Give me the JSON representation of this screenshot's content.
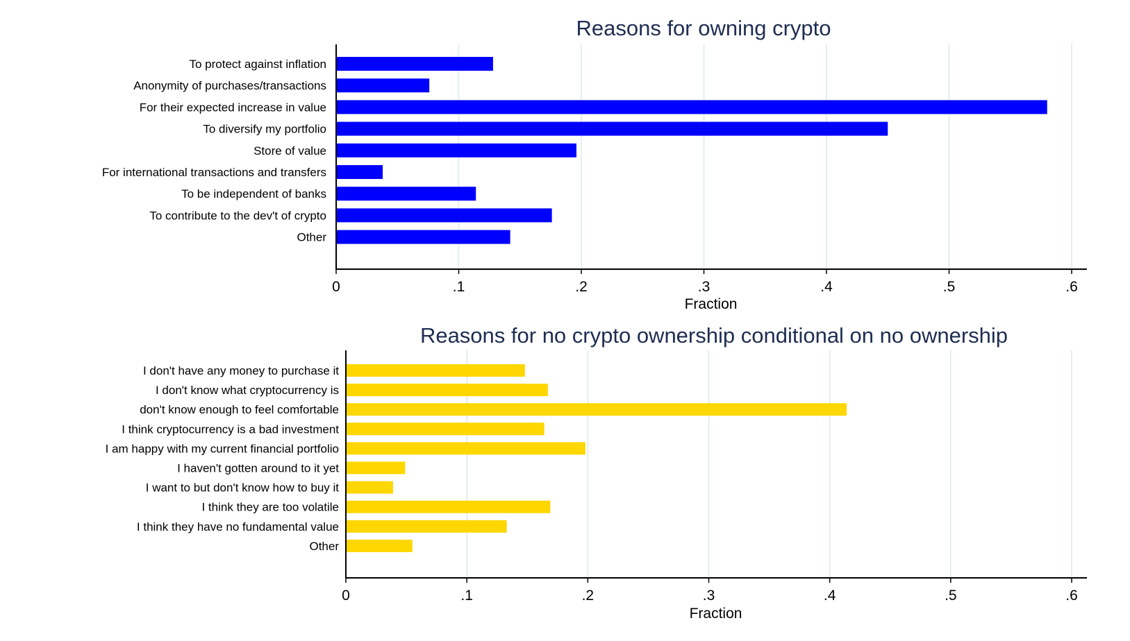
{
  "chart_data": [
    {
      "type": "bar",
      "orientation": "horizontal",
      "title": "Reasons for owning crypto",
      "xlabel": "Fraction",
      "ylabel": "",
      "xlim": [
        0,
        0.6
      ],
      "xticks": [
        0,
        0.1,
        0.2,
        0.3,
        0.4,
        0.5,
        0.6
      ],
      "xtick_labels": [
        "0",
        ".1",
        ".2",
        ".3",
        ".4",
        ".5",
        ".6"
      ],
      "grid": "vertical",
      "color": "#0000ff",
      "categories": [
        "To protect against inflation",
        "Anonymity of purchases/transactions",
        "For their expected increase in value",
        "To diversify my portfolio",
        "Store of value",
        "For international transactions and transfers",
        "To be independent of banks",
        "To contribute to the dev't of crypto",
        "Other"
      ],
      "values": [
        0.128,
        0.076,
        0.58,
        0.45,
        0.196,
        0.038,
        0.114,
        0.176,
        0.142
      ]
    },
    {
      "type": "bar",
      "orientation": "horizontal",
      "title": "Reasons for no crypto ownership conditional on no ownership",
      "xlabel": "Fraction",
      "ylabel": "",
      "xlim": [
        0,
        0.6
      ],
      "xticks": [
        0,
        0.1,
        0.2,
        0.3,
        0.4,
        0.5,
        0.6
      ],
      "xtick_labels": [
        "0",
        ".1",
        ".2",
        ".3",
        ".4",
        ".5",
        ".6"
      ],
      "grid": "vertical",
      "color": "#ffd700",
      "categories": [
        "I don't have any money to purchase it",
        "I don't know what cryptocurrency is",
        "don't know enough to feel comfortable",
        "I think cryptocurrency is a bad investment",
        "I am happy with my current financial portfolio",
        "I haven't gotten around to it yet",
        "I want to but don't know how to buy it",
        "I think they are too volatile",
        "I think they have no fundamental value",
        "Other"
      ],
      "values": [
        0.148,
        0.167,
        0.414,
        0.164,
        0.198,
        0.049,
        0.039,
        0.169,
        0.133,
        0.055
      ]
    }
  ]
}
